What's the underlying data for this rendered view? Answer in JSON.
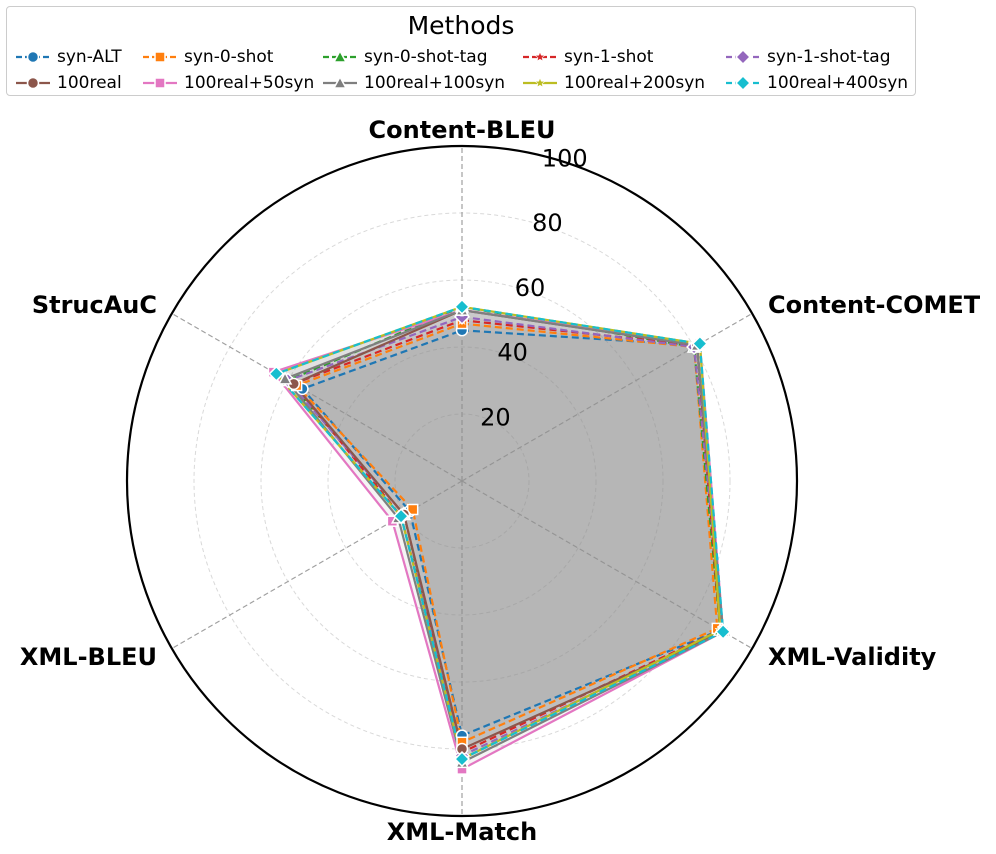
{
  "chart_data": {
    "type": "radar",
    "legend": {
      "title": "Methods",
      "placement": "top-center",
      "ncol": 5
    },
    "axes": [
      "Content-BLEU",
      "Content-COMET",
      "XML-Validity",
      "XML-Match",
      "XML-BLEU",
      "StrucAuC"
    ],
    "rlim": [
      0,
      100
    ],
    "rticks": [
      20,
      40,
      60,
      80,
      100
    ],
    "grid": true,
    "series": [
      {
        "name": "syn-ALT",
        "color": "#1f77b4",
        "linestyle": "dashed",
        "marker": "circle",
        "values": [
          45,
          81,
          89,
          76,
          18,
          55
        ]
      },
      {
        "name": "syn-0-shot",
        "color": "#ff7f0e",
        "linestyle": "dashed",
        "marker": "square",
        "values": [
          47,
          80,
          88,
          78,
          17,
          57
        ]
      },
      {
        "name": "syn-0-shot-tag",
        "color": "#2ca02c",
        "linestyle": "dashed",
        "marker": "triangle",
        "values": [
          52,
          80,
          89,
          83,
          20,
          60
        ]
      },
      {
        "name": "syn-1-shot",
        "color": "#d62728",
        "linestyle": "dashed",
        "marker": "star",
        "values": [
          48,
          81,
          89,
          81,
          21,
          58
        ]
      },
      {
        "name": "syn-1-shot-tag",
        "color": "#9467bd",
        "linestyle": "dashed",
        "marker": "diamond",
        "values": [
          49,
          80,
          90,
          82,
          20,
          60
        ]
      },
      {
        "name": "100real",
        "color": "#8c564b",
        "linestyle": "solid",
        "marker": "circle",
        "values": [
          51,
          81,
          90,
          80,
          20,
          58
        ]
      },
      {
        "name": "100real+50syn",
        "color": "#e377c2",
        "linestyle": "solid",
        "marker": "square",
        "values": [
          51,
          82,
          90,
          86,
          24,
          65
        ]
      },
      {
        "name": "100real+100syn",
        "color": "#7f7f7f",
        "linestyle": "solid",
        "marker": "triangle",
        "values": [
          51,
          81,
          90,
          84,
          22,
          61
        ]
      },
      {
        "name": "100real+200syn",
        "color": "#bcbd22",
        "linestyle": "solid",
        "marker": "star",
        "values": [
          52,
          82,
          89,
          83,
          21,
          64
        ]
      },
      {
        "name": "100real+400syn",
        "color": "#17becf",
        "linestyle": "dashed",
        "marker": "diamond",
        "values": [
          52,
          82,
          90,
          83,
          21,
          64
        ]
      }
    ]
  }
}
